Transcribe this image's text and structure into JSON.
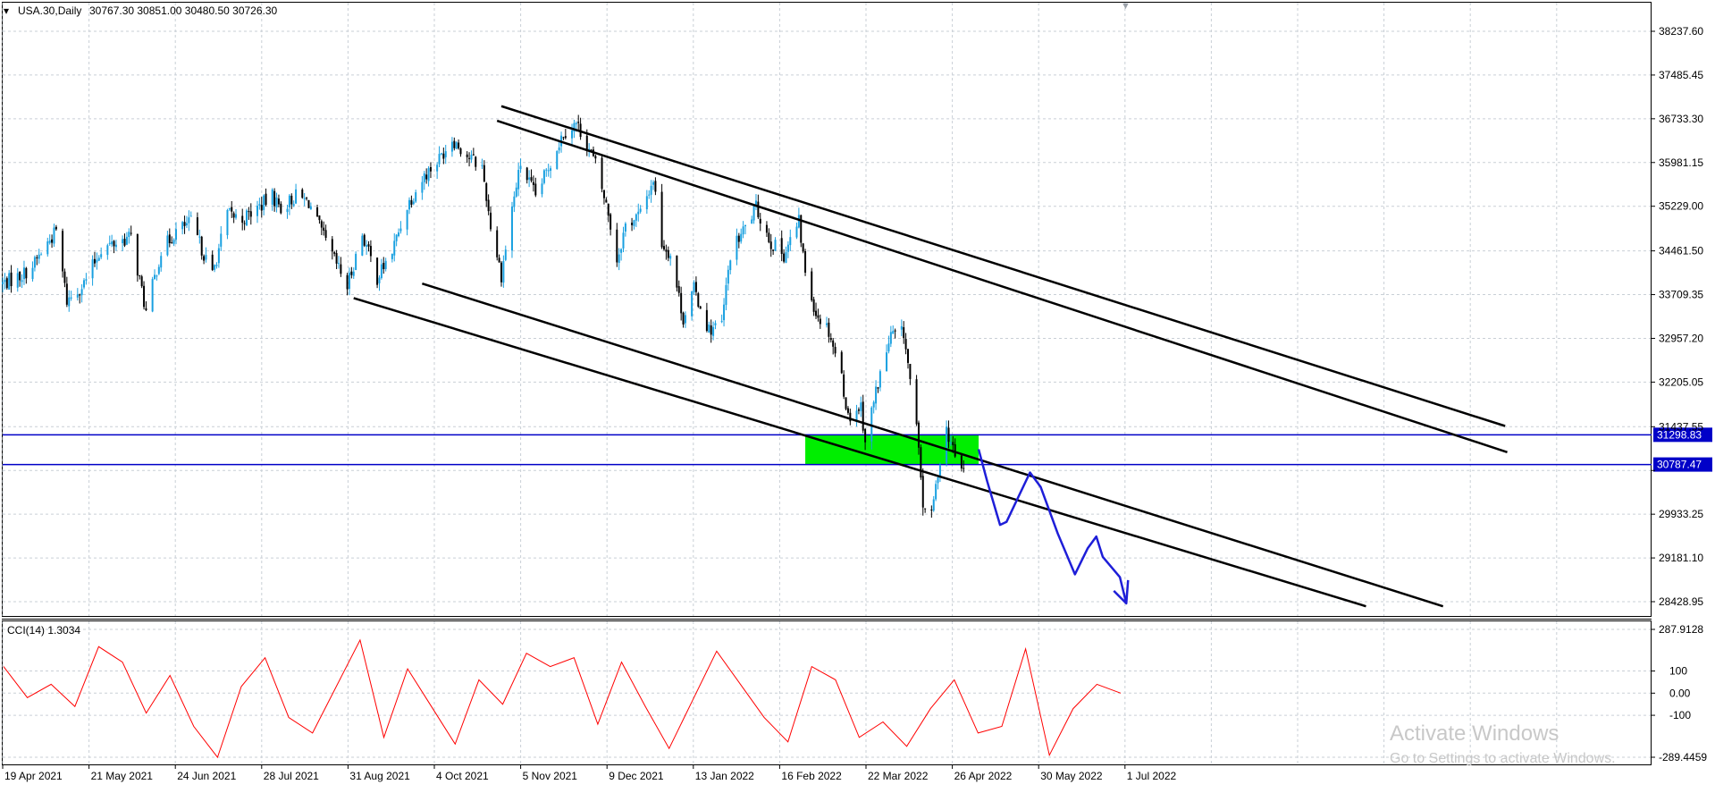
{
  "header": {
    "symbol": "USA.30,Daily",
    "ohlc": "30767.30 30851.00 30480.50 30726.30"
  },
  "colors": {
    "bull": "#19a0e0",
    "bear": "#000000",
    "cci": "#ff0000",
    "hline": "#0000c8",
    "zone": "#00ee00",
    "projection": "#1e1ed8",
    "grid": "#c9cfd6"
  },
  "chart_data": [
    {
      "type": "candlestick",
      "symbol": "USA.30",
      "timeframe": "Daily",
      "ylim": [
        28200,
        38700
      ],
      "y_ticks": [
        38237.6,
        37485.45,
        36733.3,
        35981.15,
        35229.0,
        34461.5,
        33709.35,
        32957.2,
        32205.05,
        31437.55,
        30685.4,
        29933.25,
        29181.1,
        28428.95
      ],
      "y_tick_labels": [
        "38237.60",
        "37485.45",
        "36733.30",
        "35981.15",
        "35229.00",
        "34461.50",
        "33709.35",
        "32957.20",
        "32205.05",
        "31437.55",
        "30685.40",
        "29933.25",
        "29181.10",
        "28428.95"
      ],
      "x_tick_labels": [
        "19 Apr 2021",
        "21 May 2021",
        "24 Jun 2021",
        "28 Jul 2021",
        "31 Aug 2021",
        "4 Oct 2021",
        "5 Nov 2021",
        "9 Dec 2021",
        "13 Jan 2022",
        "16 Feb 2022",
        "22 Mar 2022",
        "26 Apr 2022",
        "30 May 2022",
        "1 Jul 2022"
      ],
      "close_path": [
        [
          "2021-04-12",
          33900
        ],
        [
          "2021-04-21",
          34050
        ],
        [
          "2021-04-26",
          34200
        ],
        [
          "2021-05-03",
          34600
        ],
        [
          "2021-05-07",
          34800
        ],
        [
          "2021-05-12",
          33600
        ],
        [
          "2021-05-20",
          33900
        ],
        [
          "2021-05-28",
          34500
        ],
        [
          "2021-06-07",
          34650
        ],
        [
          "2021-06-11",
          34700
        ],
        [
          "2021-06-18",
          33400
        ],
        [
          "2021-06-25",
          34450
        ],
        [
          "2021-07-02",
          34800
        ],
        [
          "2021-07-09",
          34950
        ],
        [
          "2021-07-19",
          34050
        ],
        [
          "2021-07-26",
          35100
        ],
        [
          "2021-08-02",
          35000
        ],
        [
          "2021-08-16",
          35400
        ],
        [
          "2021-08-20",
          35200
        ],
        [
          "2021-08-27",
          35400
        ],
        [
          "2021-09-02",
          35300
        ],
        [
          "2021-09-10",
          34600
        ],
        [
          "2021-09-20",
          33850
        ],
        [
          "2021-09-27",
          34750
        ],
        [
          "2021-10-04",
          34000
        ],
        [
          "2021-10-11",
          34450
        ],
        [
          "2021-10-18",
          35250
        ],
        [
          "2021-10-26",
          35750
        ],
        [
          "2021-11-02",
          36050
        ],
        [
          "2021-11-08",
          36400
        ],
        [
          "2021-11-15",
          36100
        ],
        [
          "2021-11-22",
          35900
        ],
        [
          "2021-11-26",
          34900
        ],
        [
          "2021-12-01",
          34050
        ],
        [
          "2021-12-06",
          35200
        ],
        [
          "2021-12-10",
          35950
        ],
        [
          "2021-12-17",
          35400
        ],
        [
          "2021-12-23",
          35900
        ],
        [
          "2021-12-30",
          36500
        ],
        [
          "2022-01-05",
          36650
        ],
        [
          "2022-01-10",
          36300
        ],
        [
          "2022-01-14",
          35950
        ],
        [
          "2022-01-20",
          35100
        ],
        [
          "2022-01-24",
          34300
        ],
        [
          "2022-01-28",
          34900
        ],
        [
          "2022-02-04",
          35100
        ],
        [
          "2022-02-10",
          35700
        ],
        [
          "2022-02-14",
          34600
        ],
        [
          "2022-02-18",
          34400
        ],
        [
          "2022-02-24",
          33300
        ],
        [
          "2022-03-01",
          33800
        ],
        [
          "2022-03-08",
          33100
        ],
        [
          "2022-03-14",
          33200
        ],
        [
          "2022-03-18",
          34400
        ],
        [
          "2022-03-24",
          34800
        ],
        [
          "2022-03-30",
          35200
        ],
        [
          "2022-04-06",
          34600
        ],
        [
          "2022-04-12",
          34400
        ],
        [
          "2022-04-19",
          34950
        ],
        [
          "2022-04-22",
          34100
        ],
        [
          "2022-04-27",
          33400
        ],
        [
          "2022-05-03",
          33100
        ],
        [
          "2022-05-09",
          32300
        ],
        [
          "2022-05-12",
          31600
        ],
        [
          "2022-05-18",
          31800
        ],
        [
          "2022-05-20",
          31200
        ],
        [
          "2022-05-26",
          32200
        ],
        [
          "2022-06-01",
          33000
        ],
        [
          "2022-06-07",
          33050
        ],
        [
          "2022-06-13",
          31400
        ],
        [
          "2022-06-16",
          30100
        ],
        [
          "2022-06-20",
          29900
        ],
        [
          "2022-06-24",
          30900
        ],
        [
          "2022-06-27",
          31400
        ],
        [
          "2022-07-01",
          30900
        ],
        [
          "2022-07-05",
          30726
        ]
      ],
      "horizontal_levels": [
        31298.83,
        30787.47
      ],
      "horizontal_level_labels": [
        "31298.83",
        "30787.47"
      ],
      "support_zone": {
        "from": "2022-04-22",
        "to": "2022-07-12",
        "low": 30787.47,
        "high": 31298.83
      },
      "channel_lines": [
        {
          "name": "upper-outer",
          "p1": [
            "2021-12-01",
            36950
          ],
          "p2": [
            "2023-03-15",
            31450
          ]
        },
        {
          "name": "upper-inner",
          "p1": [
            "2021-11-29",
            36700
          ],
          "p2": [
            "2023-03-16",
            31000
          ]
        },
        {
          "name": "lower-outer",
          "p1": [
            "2021-10-25",
            33900
          ],
          "p2": [
            "2023-02-14",
            28350
          ]
        },
        {
          "name": "lower-inner",
          "p1": [
            "2021-09-23",
            33650
          ],
          "p2": [
            "2023-01-09",
            28350
          ]
        }
      ],
      "projection_path": [
        [
          "2022-07-12",
          31050
        ],
        [
          "2022-07-16",
          30500
        ],
        [
          "2022-07-22",
          29750
        ],
        [
          "2022-07-25",
          29800
        ],
        [
          "2022-08-05",
          30650
        ],
        [
          "2022-08-10",
          30400
        ],
        [
          "2022-08-18",
          29600
        ],
        [
          "2022-08-26",
          28900
        ],
        [
          "2022-09-01",
          29350
        ],
        [
          "2022-09-05",
          29550
        ],
        [
          "2022-09-08",
          29200
        ],
        [
          "2022-09-16",
          28850
        ],
        [
          "2022-09-19",
          28400
        ]
      ]
    },
    {
      "type": "line",
      "indicator": "CCI(14)",
      "title": "CCI(14) 1.3034",
      "ylim": [
        -289.4459,
        287.9128
      ],
      "y_ticks": [
        287.9128,
        100,
        0.0,
        -100,
        -289.4459
      ],
      "y_tick_labels": [
        "287.9128",
        "100",
        "0.00",
        "-100",
        "-289.4459"
      ],
      "series": [
        {
          "values": [
            120,
            -20,
            40,
            -60,
            210,
            140,
            -90,
            80,
            -150,
            -290,
            30,
            160,
            -110,
            -180,
            30,
            240,
            -200,
            110,
            -60,
            -230,
            60,
            -50,
            180,
            120,
            160,
            -140,
            140,
            -60,
            -250,
            -30,
            190,
            40,
            -110,
            -220,
            120,
            60,
            -200,
            -130,
            -240,
            -70,
            60,
            -180,
            -150,
            200,
            -280,
            -70,
            40,
            0
          ]
        }
      ]
    }
  ],
  "watermark": {
    "line1": "Activate Windows",
    "line2": "Go to Settings to activate Windows."
  }
}
